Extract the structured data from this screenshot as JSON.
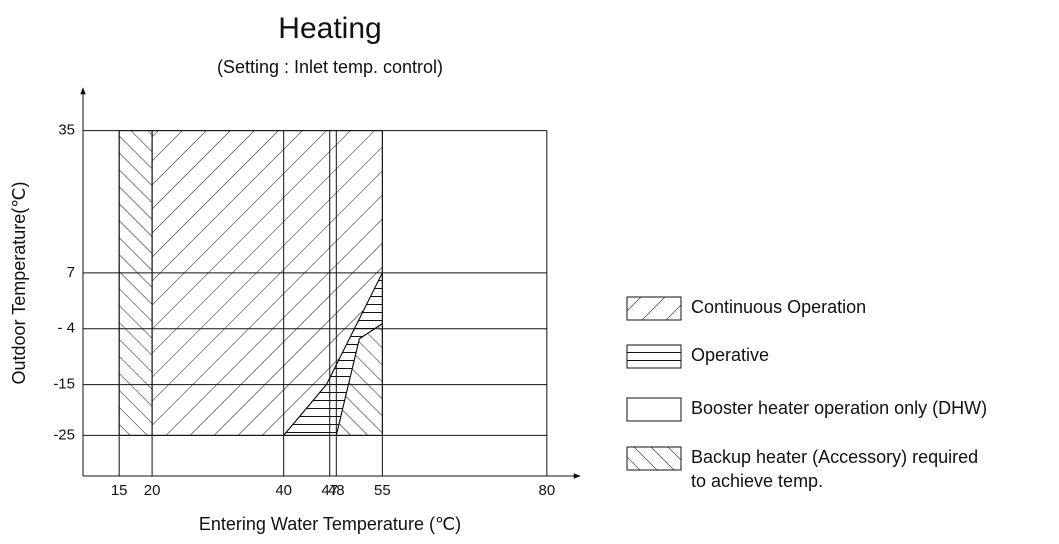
{
  "title": "Heating",
  "subtitle": "(Setting : Inlet temp. control)",
  "x_axis": {
    "label": "Entering Water Temperature (℃)",
    "xlim": [
      9.5,
      82
    ],
    "xticks": [
      15,
      20,
      40,
      47,
      48,
      55,
      80
    ]
  },
  "y_axis": {
    "label": "Outdoor Temperature(℃)",
    "ylim": [
      -33,
      43
    ],
    "yticks": [
      35,
      7,
      {
        "value": -4,
        "label": "- 4"
      },
      -15,
      -25
    ]
  },
  "legend": [
    {
      "label": [
        "Continuous Operation"
      ],
      "pattern": "diagonal",
      "regions": [
        [
          [
            20,
            35
          ],
          [
            55,
            35
          ],
          [
            55,
            7
          ],
          [
            46.5,
            -15
          ],
          [
            40,
            -25
          ],
          [
            20,
            -25
          ]
        ]
      ]
    },
    {
      "label": [
        "Operative"
      ],
      "pattern": "horizontal",
      "regions": [
        [
          [
            55,
            7
          ],
          [
            46.5,
            -15
          ],
          [
            40,
            -25
          ],
          [
            48,
            -25
          ],
          [
            51.5,
            -6
          ],
          [
            55,
            -3
          ]
        ]
      ]
    },
    {
      "label": [
        "Booster heater operation only (DHW)"
      ],
      "pattern": "none",
      "regions": []
    },
    {
      "label": [
        "Backup heater (Accessory) required",
        "to achieve temp."
      ],
      "pattern": "backslash",
      "regions": [
        [
          [
            15,
            35
          ],
          [
            20,
            35
          ],
          [
            20,
            -25
          ],
          [
            15,
            -25
          ]
        ],
        [
          [
            48,
            -25
          ],
          [
            55,
            -25
          ],
          [
            55,
            -3
          ],
          [
            51.5,
            -6
          ]
        ]
      ]
    }
  ]
}
